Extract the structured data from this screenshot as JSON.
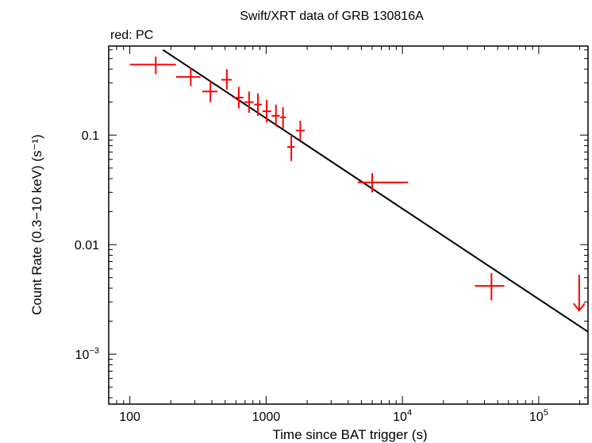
{
  "chart_data": {
    "type": "scatter",
    "title": "Swift/XRT data of GRB 130816A",
    "subtitle": "red: PC",
    "xlabel": "Time since BAT trigger (s)",
    "ylabel": "Count Rate (0.3−10 keV) (s⁻¹)",
    "x_scale": "log",
    "y_scale": "log",
    "xlim": [
      70,
      230000
    ],
    "ylim": [
      0.00035,
      0.65
    ],
    "grid": false,
    "x_ticks": [
      {
        "value": 100,
        "label": "100"
      },
      {
        "value": 1000,
        "label": "1000"
      },
      {
        "value": 10000,
        "base": "10",
        "exp": "4"
      },
      {
        "value": 100000,
        "base": "10",
        "exp": "5"
      }
    ],
    "y_ticks": [
      {
        "value": 0.1,
        "label": "0.1"
      },
      {
        "value": 0.01,
        "label": "0.01"
      },
      {
        "value": 0.001,
        "base": "10",
        "exp": "−3"
      }
    ],
    "series": [
      {
        "color": "#ff0000",
        "points": [
          {
            "x": 155,
            "y": 0.44,
            "xlo": 100,
            "xhi": 218,
            "ylo": 0.36,
            "yhi": 0.52
          },
          {
            "x": 280,
            "y": 0.34,
            "xlo": 218,
            "xhi": 330,
            "ylo": 0.28,
            "yhi": 0.41
          },
          {
            "x": 390,
            "y": 0.25,
            "xlo": 340,
            "xhi": 440,
            "ylo": 0.2,
            "yhi": 0.31
          },
          {
            "x": 515,
            "y": 0.32,
            "xlo": 470,
            "xhi": 560,
            "ylo": 0.26,
            "yhi": 0.4
          },
          {
            "x": 630,
            "y": 0.22,
            "xlo": 570,
            "xhi": 680,
            "ylo": 0.175,
            "yhi": 0.275
          },
          {
            "x": 750,
            "y": 0.2,
            "xlo": 690,
            "xhi": 810,
            "ylo": 0.16,
            "yhi": 0.25
          },
          {
            "x": 870,
            "y": 0.19,
            "xlo": 820,
            "xhi": 930,
            "ylo": 0.15,
            "yhi": 0.24
          },
          {
            "x": 1010,
            "y": 0.165,
            "xlo": 940,
            "xhi": 1090,
            "ylo": 0.13,
            "yhi": 0.21
          },
          {
            "x": 1180,
            "y": 0.15,
            "xlo": 1100,
            "xhi": 1260,
            "ylo": 0.12,
            "yhi": 0.19
          },
          {
            "x": 1330,
            "y": 0.145,
            "xlo": 1270,
            "xhi": 1400,
            "ylo": 0.115,
            "yhi": 0.18
          },
          {
            "x": 1530,
            "y": 0.078,
            "xlo": 1430,
            "xhi": 1620,
            "ylo": 0.058,
            "yhi": 0.1
          },
          {
            "x": 1780,
            "y": 0.11,
            "xlo": 1650,
            "xhi": 1920,
            "ylo": 0.09,
            "yhi": 0.135
          },
          {
            "x": 6000,
            "y": 0.037,
            "xlo": 4700,
            "xhi": 11000,
            "ylo": 0.03,
            "yhi": 0.045
          },
          {
            "x": 45000,
            "y": 0.0042,
            "xlo": 34000,
            "xhi": 56000,
            "ylo": 0.0031,
            "yhi": 0.0055
          }
        ],
        "upper_limits": [
          {
            "x": 198000,
            "y": 0.0042,
            "arrow_to": 0.0025
          }
        ]
      }
    ],
    "model": {
      "type": "power-law",
      "color": "#000000",
      "points": [
        [
          175,
          0.6
        ],
        [
          230000,
          0.0016
        ]
      ]
    }
  }
}
